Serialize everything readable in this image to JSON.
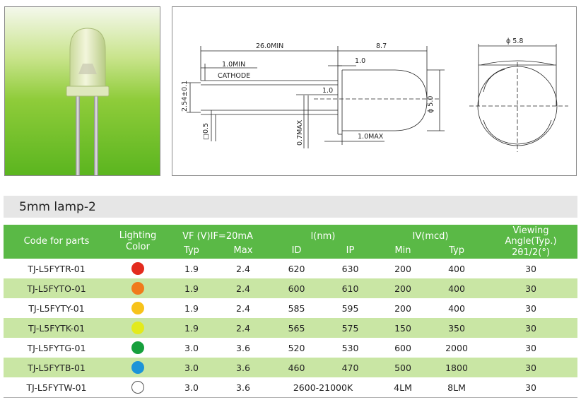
{
  "drawing": {
    "dim_26_0": "26.0MIN",
    "dim_8_7": "8.7",
    "dim_1_0_min": "1.0MIN",
    "label_cathode": "CATHODE",
    "dim_1_0_top": "1.0",
    "dim_1_0_mid": "1.0",
    "dim_2_54": "2.54±0.1",
    "dim_0_5_sq": "□0.5",
    "dim_0_7max": "0.7MAX",
    "dim_1_0max": "1.0MAX",
    "dim_phi_5_0": "ϕ 5.0",
    "dim_phi_5_8": "ϕ 5.8"
  },
  "section": {
    "title": "5mm lamp-2"
  },
  "table": {
    "headers": {
      "code": "Code for parts",
      "lighting": "Lighting",
      "color": "Color",
      "vf": "VF (V)IF=20mA",
      "vf_typ": "Typ",
      "vf_max": "Max",
      "lnm": "l(nm)",
      "id": "ID",
      "ip": "IP",
      "iv": "IV(mcd)",
      "iv_min": "Min",
      "iv_typ": "Typ",
      "viewing": "Viewing",
      "angle": "Angle(Typ.)",
      "theta": "2θ1/2(°)"
    },
    "rows": [
      {
        "code": "TJ-L5FYTR-01",
        "color": "#e32b1e",
        "vf_typ": "1.9",
        "vf_max": "2.4",
        "id": "620",
        "ip": "630",
        "iv_min": "200",
        "iv_typ": "400",
        "angle": "30"
      },
      {
        "code": "TJ-L5FYTO-01",
        "color": "#f07a1c",
        "vf_typ": "1.9",
        "vf_max": "2.4",
        "id": "600",
        "ip": "610",
        "iv_min": "200",
        "iv_typ": "400",
        "angle": "30"
      },
      {
        "code": "TJ-L5FYTY-01",
        "color": "#f7c31a",
        "vf_typ": "1.9",
        "vf_max": "2.4",
        "id": "585",
        "ip": "595",
        "iv_min": "200",
        "iv_typ": "400",
        "angle": "30"
      },
      {
        "code": "TJ-L5FYTK-01",
        "color": "#e3ea1c",
        "vf_typ": "1.9",
        "vf_max": "2.4",
        "id": "565",
        "ip": "575",
        "iv_min": "150",
        "iv_typ": "350",
        "angle": "30"
      },
      {
        "code": "TJ-L5FYTG-01",
        "color": "#16a03c",
        "vf_typ": "3.0",
        "vf_max": "3.6",
        "id": "520",
        "ip": "530",
        "iv_min": "600",
        "iv_typ": "2000",
        "angle": "30"
      },
      {
        "code": "TJ-L5FYTB-01",
        "color": "#1d94d8",
        "vf_typ": "3.0",
        "vf_max": "3.6",
        "id": "460",
        "ip": "470",
        "iv_min": "500",
        "iv_typ": "1800",
        "angle": "30"
      },
      {
        "code": "TJ-L5FYTW-01",
        "color": "#ffffff",
        "vf_typ": "3.0",
        "vf_max": "3.6",
        "cct": "2600-21000K",
        "iv_min": "4LM",
        "iv_typ": "8LM",
        "angle": "30"
      }
    ]
  }
}
